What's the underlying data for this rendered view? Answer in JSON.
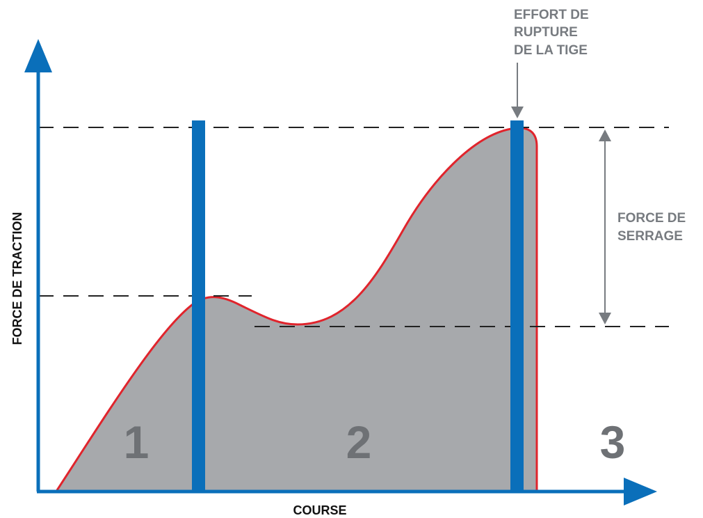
{
  "diagram": {
    "y_axis_label": "FORCE DE TRACTION",
    "x_axis_label": "COURSE",
    "rupture_label": [
      "EFFORT DE",
      "RUPTURE",
      "DE LA TIGE"
    ],
    "clamp_label": [
      "FORCE DE",
      "SERRAGE"
    ],
    "zones": [
      "1",
      "2",
      "3"
    ],
    "colors": {
      "axis": "#0a6fba",
      "curve": "#e0242c",
      "fill": "#a7a9ac",
      "divider": "#0a6fba",
      "dash": "#222222",
      "annotation": "#777b80"
    }
  }
}
